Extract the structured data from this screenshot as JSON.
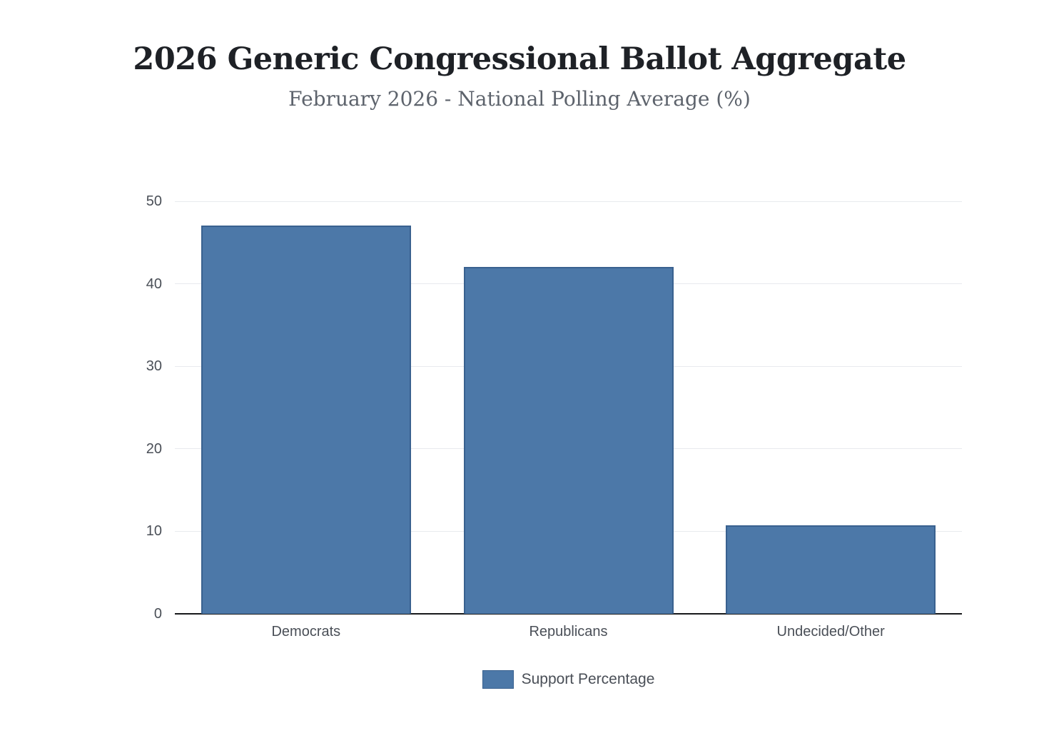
{
  "header": {
    "title": "2026 Generic Congressional Ballot Aggregate",
    "subtitle": "February 2026 - National Polling Average (%)"
  },
  "chart_data": {
    "type": "bar",
    "title": "2026 Generic Congressional Ballot Aggregate",
    "subtitle": "February 2026 - National Polling Average (%)",
    "categories": [
      "Democrats",
      "Republicans",
      "Undecided/Other"
    ],
    "series": [
      {
        "name": "Support Percentage",
        "values": [
          47.1,
          42.0,
          10.7
        ]
      }
    ],
    "xlabel": "",
    "ylabel": "",
    "ylim": [
      0,
      50
    ],
    "yticks": [
      0,
      10,
      20,
      30,
      40,
      50
    ],
    "grid": true,
    "legend_position": "bottom",
    "colors": {
      "bar_fill": "#4c78a8",
      "bar_border": "#39618f",
      "gridline": "#e8eaee",
      "axis_line": "#17181a",
      "tick_label": "#4a4f57",
      "title": "#1e2126",
      "subtitle": "#5d636c"
    }
  },
  "legend": {
    "label": "Support Percentage",
    "swatch_color": "#4c78a8"
  }
}
